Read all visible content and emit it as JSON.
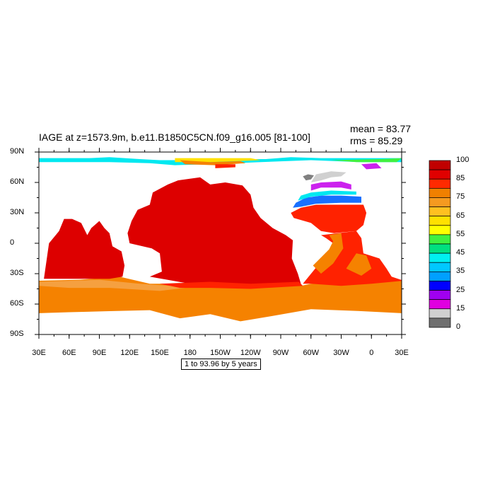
{
  "title": "IAGE at z=1573.9m, b.e11.B1850C5CN.f09_g16.005 [81-100]",
  "stats": {
    "mean": "mean = 83.77",
    "rms": "rms = 85.29"
  },
  "subtitle": "1 to 93.96 by 5 years",
  "map": {
    "lat_labels": [
      "90N",
      "60N",
      "30N",
      "0",
      "30S",
      "60S",
      "90S"
    ],
    "lon_labels": [
      "30E",
      "60E",
      "90E",
      "120E",
      "150E",
      "180",
      "150W",
      "120W",
      "90W",
      "60W",
      "30W",
      "0",
      "30E"
    ],
    "lat_range": [
      -90,
      90
    ],
    "lon_range": [
      30,
      390
    ],
    "projection": "cylindrical equidistant"
  },
  "colorbar": {
    "labels": [
      "100",
      "85",
      "75",
      "65",
      "55",
      "45",
      "35",
      "25",
      "15",
      "0"
    ],
    "colors": [
      "#c00000",
      "#e00000",
      "#ff2a00",
      "#f08000",
      "#f59a20",
      "#ffc020",
      "#ffe000",
      "#ffff00",
      "#40f040",
      "#00e080",
      "#00f0f0",
      "#00c8ff",
      "#00a0ff",
      "#0000ff",
      "#a000f0",
      "#e000e0",
      "#d0d0d0",
      "#707070"
    ]
  },
  "colors": {
    "deep_red": "#dd0000",
    "red": "#ff2200",
    "orange": "#f58200",
    "light_orange": "#f5a040",
    "cyan": "#00e8f0",
    "blue": "#1870ff",
    "magenta": "#cc22ee",
    "gray": "#808080",
    "light_gray": "#d0d0d0",
    "green": "#40f040",
    "yellow": "#ffe000"
  }
}
